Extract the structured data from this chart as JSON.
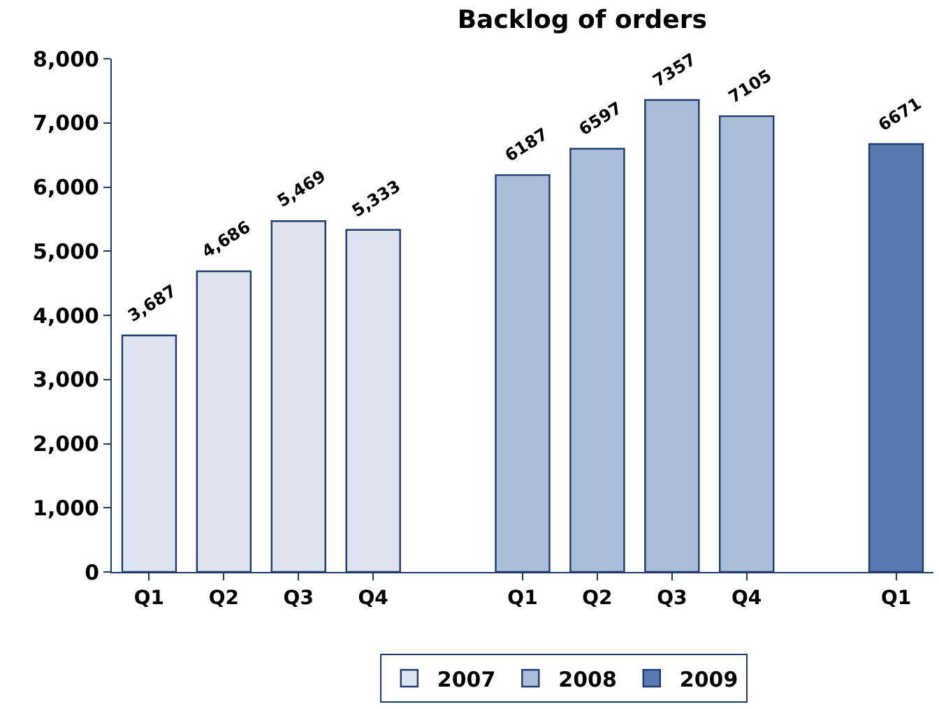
{
  "chart_data": {
    "type": "bar",
    "title": "Backlog of orders",
    "categories": [
      "Q1",
      "Q2",
      "Q3",
      "Q4",
      null,
      "Q1",
      "Q2",
      "Q3",
      "Q4",
      null,
      "Q1"
    ],
    "series": [
      {
        "name": "2007",
        "color": "#dde4f0",
        "values": [
          3687,
          4686,
          5469,
          5333,
          null,
          null,
          null,
          null,
          null,
          null,
          null
        ],
        "value_labels": [
          "3,687",
          "4,686",
          "5,469",
          "5,333",
          null,
          null,
          null,
          null,
          null,
          null,
          null
        ]
      },
      {
        "name": "2008",
        "color": "#aabdd8",
        "values": [
          null,
          null,
          null,
          null,
          null,
          6187,
          6597,
          7357,
          7105,
          null,
          null
        ],
        "value_labels": [
          null,
          null,
          null,
          null,
          null,
          "6187",
          "6597",
          "7357",
          "7105",
          null,
          null
        ]
      },
      {
        "name": "2009",
        "color": "#5879ad",
        "values": [
          null,
          null,
          null,
          null,
          null,
          null,
          null,
          null,
          null,
          null,
          6671
        ],
        "value_labels": [
          null,
          null,
          null,
          null,
          null,
          null,
          null,
          null,
          null,
          null,
          "6671"
        ]
      }
    ],
    "ylim": [
      0,
      8000
    ],
    "yticks": [
      {
        "value": 0,
        "label": "0"
      },
      {
        "value": 1000,
        "label": "1,000"
      },
      {
        "value": 2000,
        "label": "2,000"
      },
      {
        "value": 3000,
        "label": "3,000"
      },
      {
        "value": 4000,
        "label": "4,000"
      },
      {
        "value": 5000,
        "label": "5,000"
      },
      {
        "value": 6000,
        "label": "6,000"
      },
      {
        "value": 7000,
        "label": "7,000"
      },
      {
        "value": 8000,
        "label": "8,000"
      }
    ],
    "legend": "bottom"
  }
}
